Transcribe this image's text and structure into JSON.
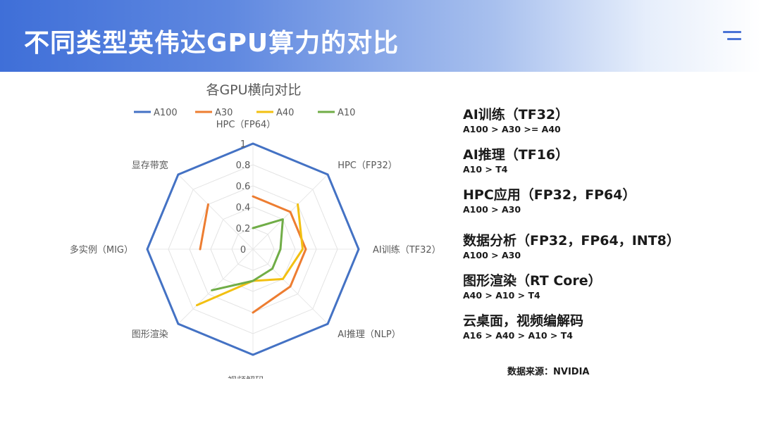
{
  "page": {
    "title": "不同类型英伟达GPU算力的对比",
    "menu_icon": "menu-lines-icon",
    "accent_color": "#3f6fd8"
  },
  "chart_data": {
    "type": "radar",
    "title": "各GPU横向对比",
    "categories": [
      "HPC（FP64）",
      "HPC（FP32）",
      "AI训练（TF32）",
      "AI推理（NLP）",
      "视频解码",
      "图形渲染",
      "多实例（MIG）",
      "显存带宽"
    ],
    "rlim": [
      0,
      1
    ],
    "rticks": [
      "0",
      "0.2",
      "0.4",
      "0.6",
      "0.8",
      "1"
    ],
    "rtick_values": [
      0,
      0.2,
      0.4,
      0.6,
      0.8,
      1
    ],
    "grid": true,
    "legend_position": "top",
    "series": [
      {
        "name": "A100",
        "color": "#4472c4",
        "closed": true,
        "values": [
          1,
          1,
          1,
          1,
          1,
          1,
          1,
          1
        ]
      },
      {
        "name": "A30",
        "color": "#ed7d31",
        "closed": false,
        "values": [
          0.5,
          0.5,
          0.5,
          0.5,
          0.6,
          null,
          0.5,
          0.6
        ]
      },
      {
        "name": "A40",
        "color": "#f2c012",
        "closed": false,
        "values": [
          null,
          0.6,
          0.47,
          0.4,
          0.3,
          0.75,
          null,
          null
        ]
      },
      {
        "name": "A10",
        "color": "#70ad47",
        "closed": false,
        "values": [
          0.2,
          0.4,
          0.26,
          0.26,
          0.3,
          0.55,
          null,
          0.3
        ]
      }
    ]
  },
  "summary": [
    {
      "title": "AI训练（TF32）",
      "detail": "A100 > A30 >= A40"
    },
    {
      "title": "AI推理（TF16）",
      "detail": "A10 > T4"
    },
    {
      "title": "HPC应用（FP32，FP64）",
      "detail": "A100 > A30"
    },
    {
      "title": "数据分析（FP32，FP64，INT8）",
      "detail": "A100 > A30"
    },
    {
      "title": "图形渲染（RT Core）",
      "detail": "A40 > A10 > T4"
    },
    {
      "title": "云桌面，视频编解码",
      "detail": "A16 > A40 > A10 > T4"
    }
  ],
  "source": "数据来源：NVIDIA"
}
